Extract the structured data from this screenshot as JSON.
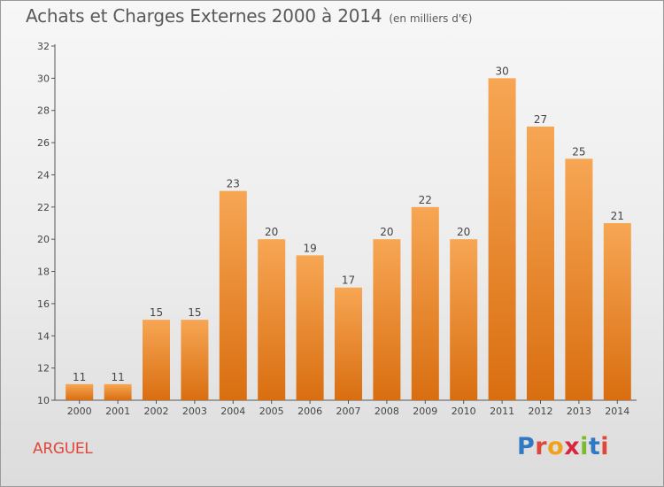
{
  "header": {
    "title": "Achats et Charges Externes 2000 à 2014",
    "unit": "(en milliers d'€)"
  },
  "location": "ARGUEL",
  "logo": {
    "letters": [
      "P",
      "r",
      "o",
      "x",
      "i",
      "t",
      "i"
    ]
  },
  "colors": {
    "bar_top": "#f7a654",
    "bar_bottom": "#d96e10",
    "location_text": "#e0473a",
    "axis": "#555555"
  },
  "chart_data": {
    "type": "bar",
    "title": "Achats et Charges Externes 2000 à 2014",
    "subtitle": "(en milliers d'€)",
    "xlabel": "",
    "ylabel": "",
    "categories": [
      "2000",
      "2001",
      "2002",
      "2003",
      "2004",
      "2005",
      "2006",
      "2007",
      "2008",
      "2009",
      "2010",
      "2011",
      "2012",
      "2013",
      "2014"
    ],
    "values": [
      11,
      11,
      15,
      15,
      23,
      20,
      19,
      17,
      20,
      22,
      20,
      30,
      27,
      25,
      21
    ],
    "ylim": [
      10,
      32
    ],
    "yticks": [
      10,
      12,
      14,
      16,
      18,
      20,
      22,
      24,
      26,
      28,
      30,
      32
    ],
    "grid": false,
    "data_labels": true
  }
}
